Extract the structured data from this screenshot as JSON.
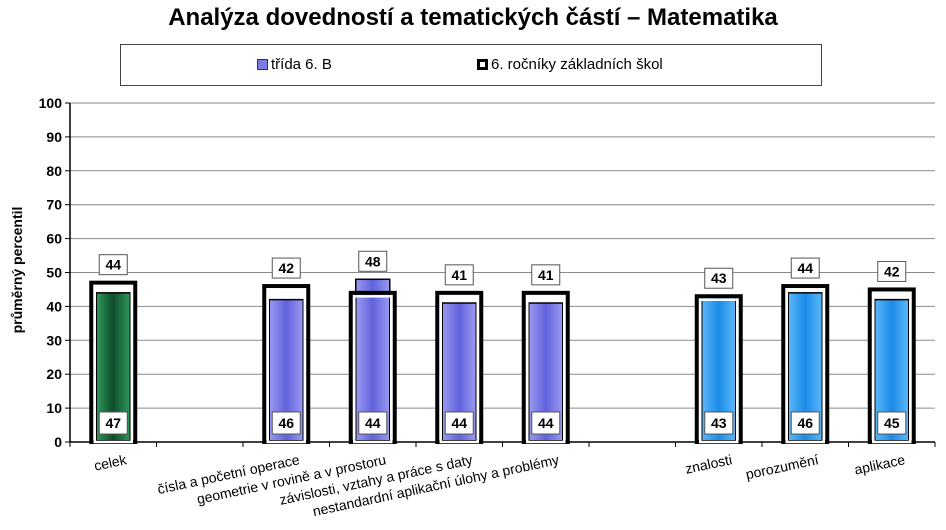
{
  "chart_data": {
    "type": "bar",
    "title": "Analýza dovedností a tematických částí – Matematika",
    "ylabel": "průměrný percentil",
    "ylim": [
      0,
      100
    ],
    "yticks": [
      0,
      10,
      20,
      30,
      40,
      50,
      60,
      70,
      80,
      90,
      100
    ],
    "grid": true,
    "legend_position": "top",
    "categories": [
      "celek",
      "",
      "čísla a početní operace",
      "geometrie v rovině a v prostoru",
      "závislosti, vztahy a práce s daty",
      "nestandardní aplikační úlohy a problémy",
      "",
      "znalosti",
      "porozumění",
      "aplikace"
    ],
    "series": [
      {
        "name": "třída 6. B",
        "values": [
          44,
          null,
          42,
          48,
          41,
          41,
          null,
          43,
          44,
          42
        ],
        "colors": [
          "#1e7a45",
          null,
          "#7a7ae8",
          "#7a7ae8",
          "#7a7ae8",
          "#7a7ae8",
          null,
          "#2a9df0",
          "#2a9df0",
          "#2a9df0"
        ]
      },
      {
        "name": "6. ročníky základních škol",
        "values": [
          47,
          null,
          46,
          44,
          44,
          44,
          null,
          43,
          46,
          45
        ]
      }
    ]
  }
}
